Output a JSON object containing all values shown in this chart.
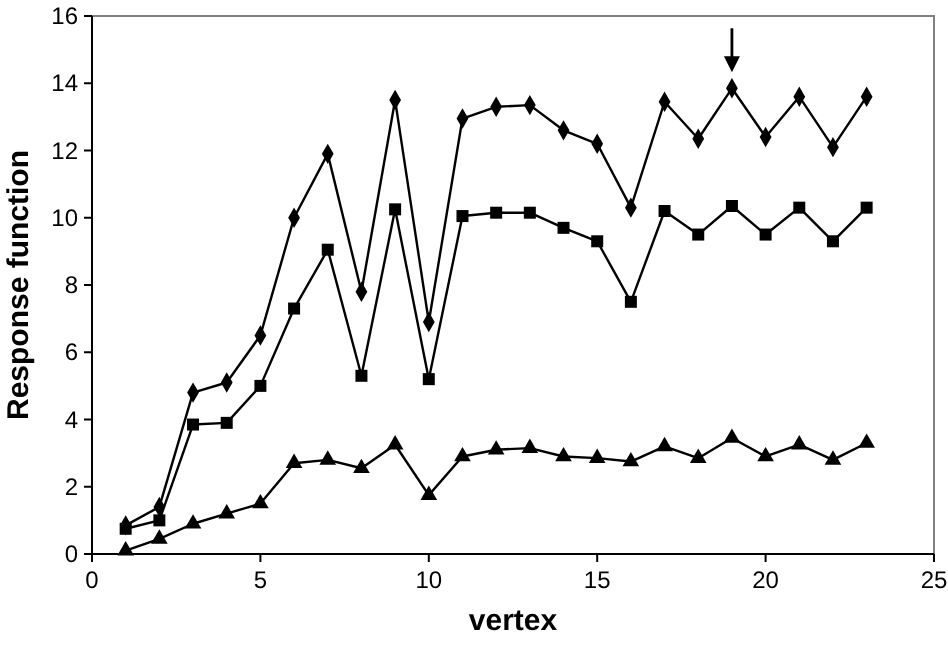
{
  "chart_data": {
    "type": "line",
    "xlabel": "vertex",
    "ylabel": "Response function",
    "x": [
      1,
      2,
      3,
      4,
      5,
      6,
      7,
      8,
      9,
      10,
      11,
      12,
      13,
      14,
      15,
      16,
      17,
      18,
      19,
      20,
      21,
      22,
      23
    ],
    "series": [
      {
        "color": "#000000",
        "marker": "diamond",
        "values": [
          0.85,
          1.4,
          4.8,
          5.1,
          6.5,
          10.0,
          11.9,
          7.8,
          13.5,
          6.9,
          12.95,
          13.3,
          13.35,
          12.6,
          12.2,
          10.3,
          13.45,
          12.35,
          13.85,
          12.4,
          13.6,
          12.1,
          13.6
        ]
      },
      {
        "color": "#000000",
        "marker": "square",
        "values": [
          0.75,
          1.0,
          3.85,
          3.9,
          5.0,
          7.3,
          9.05,
          5.3,
          10.25,
          5.2,
          10.05,
          10.15,
          10.15,
          9.7,
          9.3,
          7.5,
          10.2,
          9.5,
          10.35,
          9.5,
          10.3,
          9.3,
          10.3
        ]
      },
      {
        "color": "#000000",
        "marker": "triangle",
        "values": [
          0.1,
          0.45,
          0.9,
          1.2,
          1.5,
          2.7,
          2.8,
          2.55,
          3.25,
          1.75,
          2.9,
          3.1,
          3.15,
          2.9,
          2.85,
          2.75,
          3.2,
          2.85,
          3.45,
          2.9,
          3.25,
          2.8,
          3.3
        ]
      }
    ],
    "xlim": [
      0,
      25
    ],
    "xticks": [
      0,
      5,
      10,
      15,
      20,
      25
    ],
    "ylim": [
      0,
      16
    ],
    "yticks": [
      0,
      2,
      4,
      6,
      8,
      10,
      12,
      14,
      16
    ],
    "grid": false
  }
}
